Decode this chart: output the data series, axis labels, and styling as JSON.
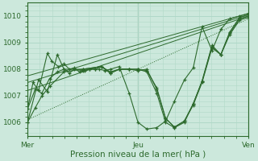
{
  "xlabel": "Pression niveau de la mer( hPa )",
  "background_color": "#cce8dc",
  "plot_bg_color": "#cce8dc",
  "grid_color": "#b0d8c8",
  "line_color": "#2d6a2d",
  "ylim": [
    1005.5,
    1010.5
  ],
  "xlim": [
    0,
    2.0
  ],
  "day_labels": [
    "Mer",
    "Jeu",
    "Ven"
  ],
  "day_positions": [
    0.0,
    1.0,
    2.0
  ],
  "yticks": [
    1006,
    1007,
    1008,
    1009,
    1010
  ],
  "series": [
    {
      "x": [
        0.0,
        2.0
      ],
      "y": [
        1006.1,
        1009.9
      ],
      "marker": false,
      "lw": 0.7,
      "linestyle": "dotted"
    },
    {
      "x": [
        0.0,
        2.0
      ],
      "y": [
        1007.2,
        1010.0
      ],
      "marker": false,
      "lw": 0.7,
      "linestyle": "solid"
    },
    {
      "x": [
        0.0,
        2.0
      ],
      "y": [
        1007.5,
        1010.05
      ],
      "marker": false,
      "lw": 0.7,
      "linestyle": "solid"
    },
    {
      "x": [
        0.0,
        2.0
      ],
      "y": [
        1007.75,
        1010.1
      ],
      "marker": false,
      "lw": 0.7,
      "linestyle": "solid"
    },
    {
      "x": [
        0.0,
        0.05,
        0.1,
        0.18,
        0.22,
        0.28,
        0.33,
        0.38,
        0.42,
        0.47,
        0.52,
        0.56,
        0.61,
        0.65,
        0.7,
        0.75,
        0.83,
        0.92,
        1.0,
        1.08,
        1.17,
        1.25,
        1.33,
        1.42,
        1.5,
        1.58,
        1.67,
        1.75,
        1.83,
        1.92,
        2.0
      ],
      "y": [
        1006.5,
        1007.5,
        1007.2,
        1008.6,
        1008.3,
        1008.1,
        1008.2,
        1008.0,
        1008.05,
        1007.9,
        1007.95,
        1008.0,
        1008.0,
        1008.0,
        1007.95,
        1008.0,
        1008.1,
        1007.1,
        1006.0,
        1005.75,
        1005.8,
        1006.05,
        1006.8,
        1007.6,
        1008.05,
        1009.6,
        1008.7,
        1009.5,
        1009.9,
        1010.0,
        1010.1
      ],
      "marker": true,
      "lw": 0.8,
      "linestyle": "solid"
    },
    {
      "x": [
        0.0,
        0.1,
        0.18,
        0.27,
        0.33,
        0.38,
        0.42,
        0.5,
        0.56,
        0.61,
        0.67,
        0.75,
        0.83,
        0.92,
        1.0,
        1.08,
        1.17,
        1.25,
        1.33,
        1.42,
        1.5,
        1.58,
        1.67,
        1.75,
        1.83,
        1.92,
        2.0
      ],
      "y": [
        1006.0,
        1007.6,
        1007.15,
        1008.55,
        1008.0,
        1007.85,
        1008.0,
        1007.95,
        1008.0,
        1008.0,
        1008.1,
        1007.9,
        1008.0,
        1008.0,
        1008.0,
        1007.9,
        1007.1,
        1006.0,
        1005.8,
        1006.0,
        1006.7,
        1007.55,
        1008.9,
        1008.55,
        1009.4,
        1009.95,
        1010.05
      ],
      "marker": true,
      "lw": 0.8,
      "linestyle": "solid"
    },
    {
      "x": [
        0.0,
        0.07,
        0.13,
        0.2,
        0.27,
        0.33,
        0.5,
        0.67,
        0.75,
        0.83,
        0.92,
        1.0,
        1.08,
        1.17,
        1.25,
        1.33,
        1.42,
        1.5,
        1.58,
        1.67,
        1.75,
        1.83,
        1.92,
        2.0
      ],
      "y": [
        1006.5,
        1007.25,
        1007.1,
        1007.65,
        1007.9,
        1008.0,
        1008.0,
        1008.1,
        1007.85,
        1008.0,
        1008.0,
        1007.95,
        1008.0,
        1007.25,
        1006.15,
        1005.82,
        1006.05,
        1006.7,
        1007.55,
        1008.85,
        1008.55,
        1009.35,
        1009.9,
        1010.0
      ],
      "marker": true,
      "lw": 0.8,
      "linestyle": "solid"
    },
    {
      "x": [
        0.0,
        0.07,
        0.13,
        0.2,
        0.33,
        0.5,
        0.67,
        0.75,
        0.83,
        0.92,
        1.0,
        1.08,
        1.17,
        1.25,
        1.33,
        1.42,
        1.5,
        1.58,
        1.67,
        1.75,
        1.83,
        1.92,
        2.0
      ],
      "y": [
        1006.0,
        1006.55,
        1007.0,
        1007.35,
        1007.9,
        1008.0,
        1008.1,
        1007.85,
        1008.0,
        1008.0,
        1008.0,
        1007.95,
        1007.3,
        1006.15,
        1005.82,
        1006.05,
        1006.65,
        1007.5,
        1008.8,
        1008.55,
        1009.3,
        1009.85,
        1009.95
      ],
      "marker": true,
      "lw": 0.8,
      "linestyle": "solid"
    }
  ]
}
